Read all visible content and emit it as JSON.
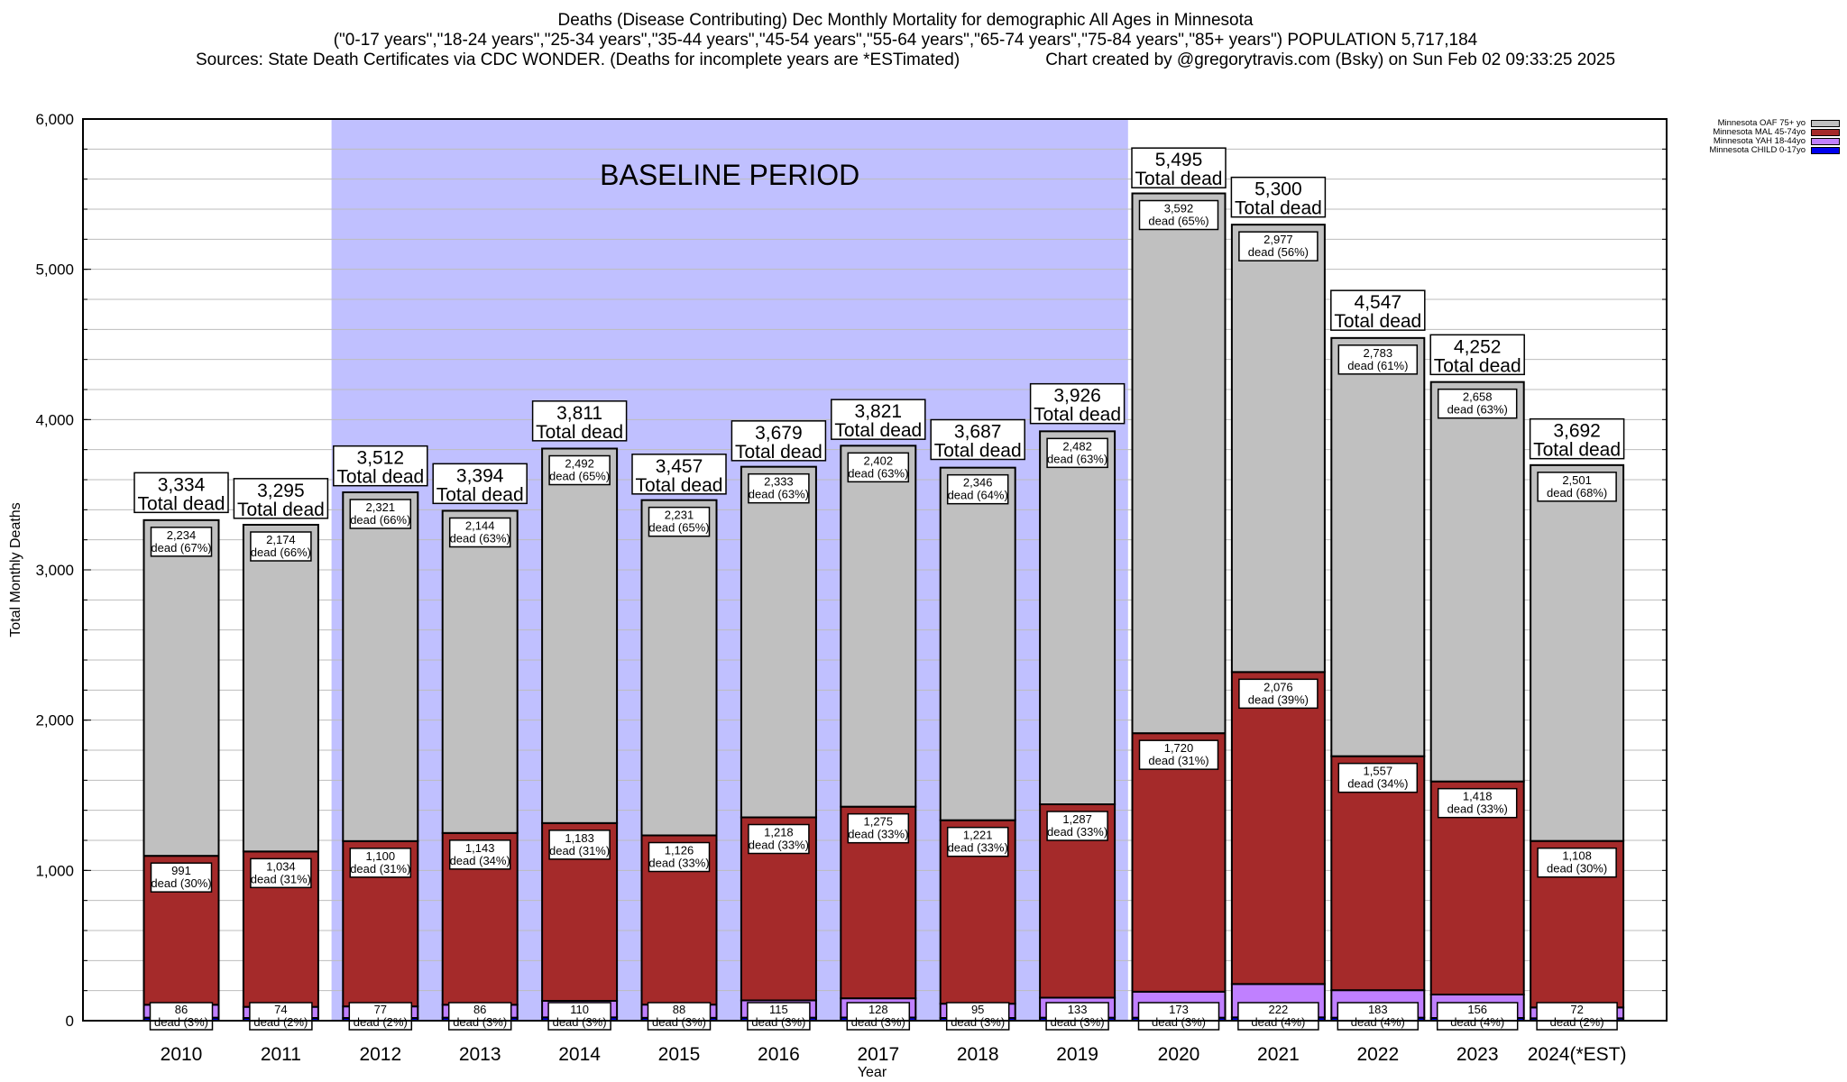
{
  "chart_data": {
    "type": "bar",
    "stacked": true,
    "title": "Deaths (Disease Contributing) Dec Monthly Mortality for demographic All Ages in Minnesota",
    "subtitle": "(\"0-17 years\",\"18-24 years\",\"25-34 years\",\"35-44 years\",\"45-54 years\",\"55-64 years\",\"65-74 years\",\"75-84 years\",\"85+ years\") POPULATION 5,717,184",
    "sources": "Sources: State Death Certificates via CDC WONDER. (Deaths for incomplete years are *ESTimated)",
    "credit": "Chart created by @gregorytravis.com (Bsky) on Sun Feb 02 09:33:25 2025",
    "xlabel": "Year",
    "ylabel": "Total Monthly Deaths",
    "ylim": [
      0,
      6000
    ],
    "yticks": [
      0,
      1000,
      2000,
      3000,
      4000,
      5000,
      6000
    ],
    "ytick_labels": [
      "0",
      "1,000",
      "2,000",
      "3,000",
      "4,000",
      "5,000",
      "6,000"
    ],
    "grid": true,
    "grid_step": 200,
    "legend_position": "top-right",
    "categories": [
      "2010",
      "2011",
      "2012",
      "2013",
      "2014",
      "2015",
      "2016",
      "2017",
      "2018",
      "2019",
      "2020",
      "2021",
      "2022",
      "2023",
      "2024(*EST)"
    ],
    "annotation": {
      "label": "BASELINE PERIOD",
      "from_category": "2012",
      "to_category": "2019",
      "color": "#c0c0ff"
    },
    "total_label_suffix": "Total dead",
    "series": [
      {
        "name": "Minnesota CHILD 0-17yo",
        "color": "#0000ee",
        "values": [
          20,
          18,
          18,
          20,
          22,
          19,
          20,
          21,
          18,
          20,
          20,
          22,
          20,
          18,
          16
        ]
      },
      {
        "name": "Minnesota YAH 18-44yo",
        "color": "#c080ff",
        "values": [
          86,
          74,
          77,
          86,
          110,
          88,
          115,
          128,
          95,
          133,
          173,
          222,
          183,
          156,
          72
        ],
        "pct": [
          "3%",
          "2%",
          "2%",
          "3%",
          "3%",
          "3%",
          "3%",
          "3%",
          "3%",
          "3%",
          "3%",
          "4%",
          "4%",
          "4%",
          "2%"
        ]
      },
      {
        "name": "Minnesota MAL 45-74yo",
        "color": "#a52a2a",
        "values": [
          991,
          1034,
          1100,
          1143,
          1183,
          1126,
          1218,
          1275,
          1221,
          1287,
          1720,
          2076,
          1557,
          1418,
          1108
        ],
        "pct": [
          "30%",
          "31%",
          "31%",
          "34%",
          "31%",
          "33%",
          "33%",
          "33%",
          "33%",
          "33%",
          "31%",
          "39%",
          "34%",
          "33%",
          "30%"
        ]
      },
      {
        "name": "Minnesota OAF 75+ yo",
        "color": "#c0c0c0",
        "values": [
          2234,
          2174,
          2321,
          2144,
          2492,
          2231,
          2333,
          2402,
          2346,
          2482,
          3592,
          2977,
          2783,
          2658,
          2501
        ],
        "pct": [
          "67%",
          "66%",
          "66%",
          "63%",
          "65%",
          "65%",
          "63%",
          "63%",
          "64%",
          "63%",
          "65%",
          "56%",
          "61%",
          "63%",
          "68%"
        ]
      }
    ],
    "totals": [
      3334,
      3295,
      3512,
      3394,
      3811,
      3457,
      3679,
      3821,
      3687,
      3926,
      5495,
      5300,
      4547,
      4252,
      3692
    ],
    "legend_order": [
      "Minnesota OAF 75+ yo",
      "Minnesota MAL 45-74yo",
      "Minnesota YAH 18-44yo",
      "Minnesota CHILD 0-17yo"
    ]
  }
}
